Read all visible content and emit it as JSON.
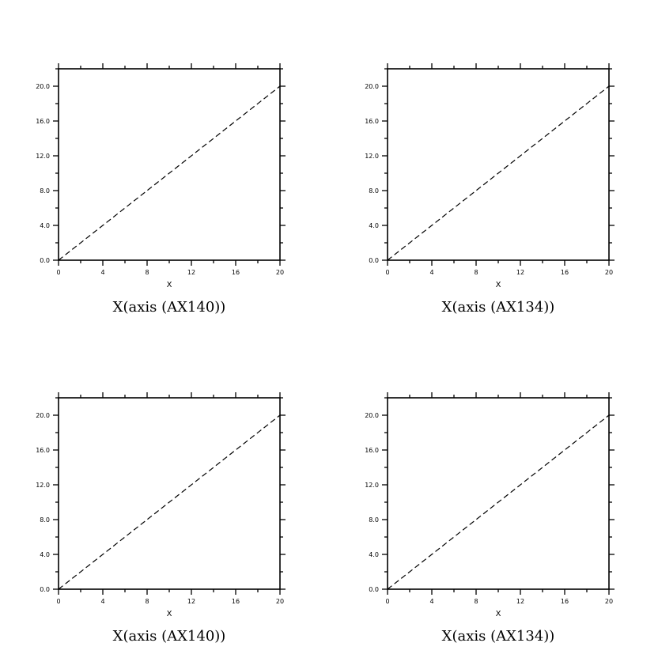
{
  "chart_data": [
    {
      "type": "line",
      "title": "X(axis (AX140))",
      "xlabel": "X",
      "ylabel": "",
      "xlim": [
        0,
        20
      ],
      "ylim": [
        0,
        22
      ],
      "x_ticks": [
        0,
        4,
        8,
        12,
        16,
        20
      ],
      "x_tick_labels": [
        "0",
        "4",
        "8",
        "12",
        "16",
        "20"
      ],
      "y_ticks": [
        0,
        4,
        8,
        12,
        16,
        20
      ],
      "y_tick_labels": [
        "0.0",
        "4.0",
        "8.0",
        "12.0",
        "16.0",
        "20.0"
      ],
      "grid": false,
      "series": [
        {
          "line_style": "dashed",
          "color": "#000000",
          "x": [
            0,
            20
          ],
          "y": [
            0,
            20
          ]
        }
      ]
    },
    {
      "type": "line",
      "title": "X(axis (AX134))",
      "xlabel": "X",
      "ylabel": "",
      "xlim": [
        0,
        20
      ],
      "ylim": [
        0,
        22
      ],
      "x_ticks": [
        0,
        4,
        8,
        12,
        16,
        20
      ],
      "x_tick_labels": [
        "0",
        "4",
        "8",
        "12",
        "16",
        "20"
      ],
      "y_ticks": [
        0,
        4,
        8,
        12,
        16,
        20
      ],
      "y_tick_labels": [
        "0.0",
        "4.0",
        "8.0",
        "12.0",
        "16.0",
        "20.0"
      ],
      "grid": false,
      "series": [
        {
          "line_style": "dashed",
          "color": "#000000",
          "x": [
            0,
            20
          ],
          "y": [
            0,
            20
          ]
        }
      ]
    },
    {
      "type": "line",
      "title": "X(axis (AX140))",
      "xlabel": "X",
      "ylabel": "",
      "xlim": [
        0,
        20
      ],
      "ylim": [
        0,
        22
      ],
      "x_ticks": [
        0,
        4,
        8,
        12,
        16,
        20
      ],
      "x_tick_labels": [
        "0",
        "4",
        "8",
        "12",
        "16",
        "20"
      ],
      "y_ticks": [
        0,
        4,
        8,
        12,
        16,
        20
      ],
      "y_tick_labels": [
        "0.0",
        "4.0",
        "8.0",
        "12.0",
        "16.0",
        "20.0"
      ],
      "grid": false,
      "series": [
        {
          "line_style": "dashed",
          "color": "#000000",
          "x": [
            0,
            20
          ],
          "y": [
            0,
            20
          ]
        }
      ]
    },
    {
      "type": "line",
      "title": "X(axis (AX134))",
      "xlabel": "X",
      "ylabel": "",
      "xlim": [
        0,
        20
      ],
      "ylim": [
        0,
        22
      ],
      "x_ticks": [
        0,
        4,
        8,
        12,
        16,
        20
      ],
      "x_tick_labels": [
        "0",
        "4",
        "8",
        "12",
        "16",
        "20"
      ],
      "y_ticks": [
        0,
        4,
        8,
        12,
        16,
        20
      ],
      "y_tick_labels": [
        "0.0",
        "4.0",
        "8.0",
        "12.0",
        "16.0",
        "20.0"
      ],
      "grid": false,
      "series": [
        {
          "line_style": "dashed",
          "color": "#000000",
          "x": [
            0,
            20
          ],
          "y": [
            0,
            20
          ]
        }
      ]
    }
  ]
}
